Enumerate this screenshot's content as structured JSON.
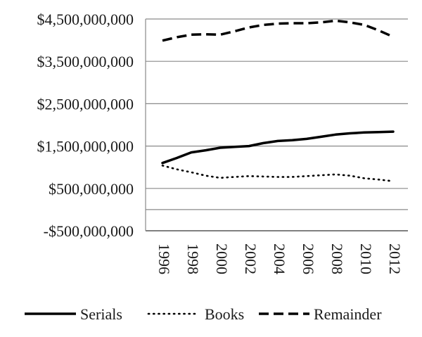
{
  "chart_data": {
    "type": "line",
    "x": [
      "1996",
      "1998",
      "2000",
      "2002",
      "2004",
      "2006",
      "2008",
      "2010",
      "2012"
    ],
    "y_ticks": [
      "-$500,000,000",
      "$500,000,000",
      "$1,500,000,000",
      "$2,500,000,000",
      "$3,500,000,000",
      "$4,500,000,000"
    ],
    "ylim": [
      -500000000,
      4500000000
    ],
    "grid": true,
    "legend_position": "bottom",
    "series": [
      {
        "name": "Serials",
        "style": "solid",
        "color": "#000000",
        "x": [
          1996,
          1997,
          1998,
          1999,
          2000,
          2001,
          2002,
          2003,
          2004,
          2005,
          2006,
          2007,
          2008,
          2009,
          2010,
          2011,
          2012
        ],
        "values": [
          1100000000,
          1220000000,
          1350000000,
          1400000000,
          1460000000,
          1480000000,
          1500000000,
          1570000000,
          1620000000,
          1640000000,
          1670000000,
          1720000000,
          1770000000,
          1800000000,
          1820000000,
          1830000000,
          1840000000
        ]
      },
      {
        "name": "Books",
        "style": "dotted",
        "color": "#000000",
        "x": [
          1996,
          1997,
          1998,
          1999,
          2000,
          2001,
          2002,
          2003,
          2004,
          2005,
          2006,
          2007,
          2008,
          2009,
          2010,
          2011,
          2012
        ],
        "values": [
          1040000000,
          950000000,
          880000000,
          800000000,
          750000000,
          770000000,
          790000000,
          780000000,
          770000000,
          770000000,
          790000000,
          810000000,
          830000000,
          800000000,
          740000000,
          710000000,
          670000000
        ]
      },
      {
        "name": "Remainder",
        "style": "dashed",
        "color": "#000000",
        "x": [
          1996,
          1997,
          1998,
          1999,
          2000,
          2001,
          2002,
          2003,
          2004,
          2005,
          2006,
          2007,
          2008,
          2009,
          2010,
          2011,
          2012
        ],
        "values": [
          3990000000,
          4070000000,
          4130000000,
          4140000000,
          4130000000,
          4210000000,
          4300000000,
          4360000000,
          4390000000,
          4400000000,
          4400000000,
          4420000000,
          4460000000,
          4420000000,
          4360000000,
          4230000000,
          4080000000
        ]
      }
    ]
  }
}
